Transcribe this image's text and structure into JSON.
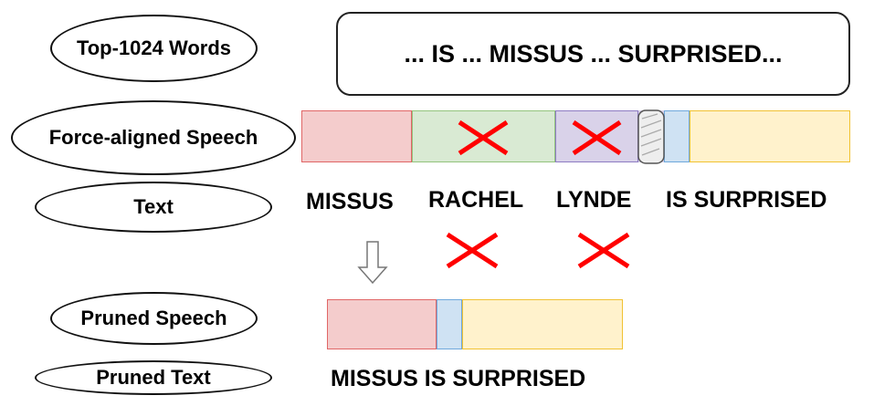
{
  "labels": {
    "top_words": "Top-1024 Words",
    "force_aligned": "Force-aligned Speech",
    "text": "Text",
    "pruned_speech": "Pruned Speech",
    "pruned_text": "Pruned Text"
  },
  "top_words_box": "... IS ... MISSUS ... SURPRISED...",
  "text_words": {
    "missus": "MISSUS",
    "rachel": "RACHEL",
    "lynde": "LYNDE",
    "is_surprised": "IS SURPRISED"
  },
  "pruned_text": "MISSUS IS SURPRISED",
  "colors": {
    "missus": "#f4cccc",
    "rachel": "#d9ead3",
    "lynde": "#d9d2e9",
    "is": "#cfe2f3",
    "surprised": "#fff2cc",
    "cross": "#ff0000"
  }
}
